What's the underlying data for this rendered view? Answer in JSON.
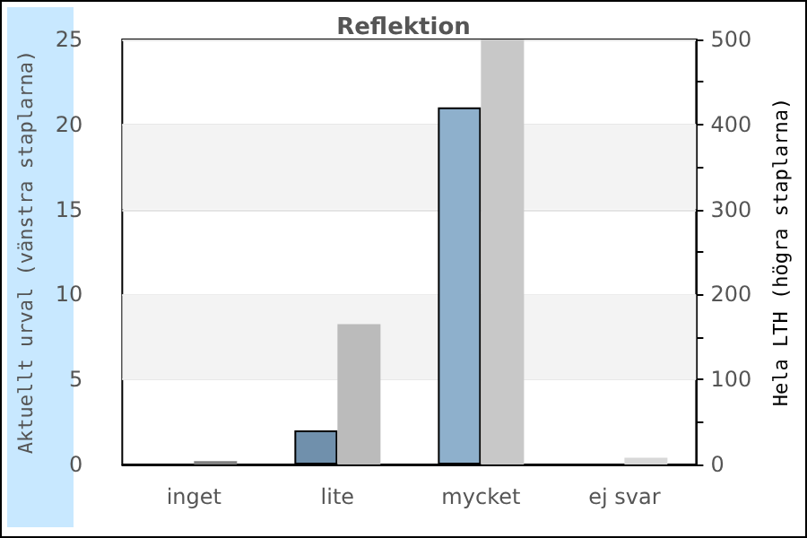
{
  "chart_data": {
    "type": "bar",
    "title": "Reflektion",
    "ylabel": "Aktuellt urval (vänstra staplarna)",
    "y2label": "Hela LTH (högra staplarna)",
    "categories": [
      "inget",
      "lite",
      "mycket",
      "ej svar"
    ],
    "series": [
      {
        "colors": [
          "#7090ac",
          "#7090ac",
          "#8eb0cc",
          "#8eb0cc"
        ],
        "values": [
          0,
          2,
          21,
          0
        ]
      },
      {
        "axis": "y2",
        "colors": [
          "#808080",
          "#bbbbbb",
          "#c8c8c8",
          "#d8d8d8"
        ],
        "values": [
          4,
          165,
          500,
          8
        ]
      }
    ],
    "ylim": [
      0,
      25
    ],
    "yticks": [
      0,
      5,
      10,
      15,
      20,
      25
    ],
    "y2lim": [
      0,
      500
    ],
    "y2ticks": [
      0,
      {
        "value": 50,
        "label": null
      },
      100,
      {
        "value": 150,
        "label": null
      },
      200,
      {
        "value": 250,
        "label": null
      },
      300,
      {
        "value": 350,
        "label": null
      },
      400,
      {
        "value": 450,
        "label": null
      },
      500
    ],
    "grid": "y",
    "bands": [
      {
        "axis": "y",
        "from": 5,
        "to": 10,
        "color": "#f3f3f3"
      },
      {
        "axis": "y",
        "from": 15,
        "to": 20,
        "color": "#f3f3f3"
      }
    ]
  }
}
